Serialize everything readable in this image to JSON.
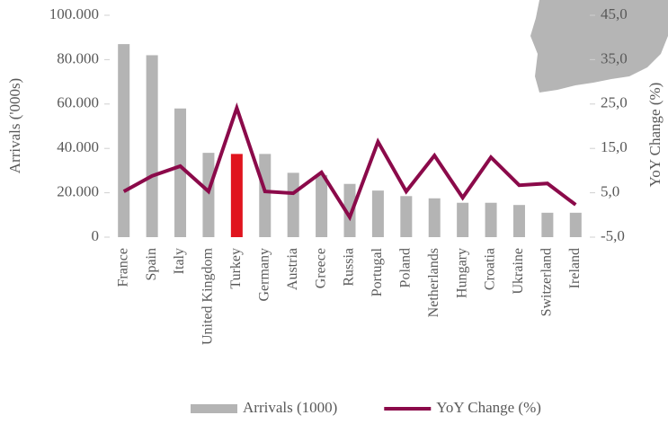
{
  "chart_data": {
    "type": "bar_line",
    "y_label": "Arrivals ('000s)",
    "y2_label": "YoY Change (%)",
    "categories": [
      "France",
      "Spain",
      "Italy",
      "United Kingdom",
      "Turkey",
      "Germany",
      "Austria",
      "Greece",
      "Russia",
      "Portugal",
      "Poland",
      "Netherlands",
      "Hungary",
      "Croatia",
      "Ukraine",
      "Switzerland",
      "Ireland"
    ],
    "series": [
      {
        "name": "Arrivals (1000)",
        "type": "bar",
        "color": "#b4b4b4",
        "colors": [
          "#b4b4b4",
          "#b4b4b4",
          "#b4b4b4",
          "#b4b4b4",
          "#e0141e",
          "#b4b4b4",
          "#b4b4b4",
          "#b4b4b4",
          "#b4b4b4",
          "#b4b4b4",
          "#b4b4b4",
          "#b4b4b4",
          "#b4b4b4",
          "#b4b4b4",
          "#b4b4b4",
          "#b4b4b4",
          "#b4b4b4"
        ],
        "values": [
          87000,
          82000,
          58000,
          38000,
          37500,
          37500,
          29000,
          28000,
          24000,
          21000,
          18500,
          17500,
          15500,
          15500,
          14500,
          11000,
          11000
        ]
      },
      {
        "name": "YoY Change (%)",
        "type": "line",
        "axis": "y2",
        "color": "#8b0a4a",
        "values": [
          5.3,
          8.8,
          11,
          5.3,
          24.1,
          5.3,
          4.9,
          9.6,
          -0.5,
          16.5,
          5.3,
          13.4,
          3.9,
          13,
          6.7,
          7.1,
          2.3
        ]
      }
    ],
    "ylim": [
      0,
      100000
    ],
    "yticks": [
      0,
      {
        "value": 20000,
        "label": "20.000"
      },
      {
        "value": 40000,
        "label": "40.000"
      },
      {
        "value": 60000,
        "label": "60.000"
      },
      {
        "value": 80000,
        "label": "80.000"
      },
      {
        "value": 100000,
        "label": "100.000"
      }
    ],
    "y2lim": [
      -5,
      45
    ],
    "y2ticks": [
      {
        "value": -5,
        "label": "-5,0"
      },
      {
        "value": 5,
        "label": "5,0"
      },
      {
        "value": 15,
        "label": "15,0"
      },
      {
        "value": 25,
        "label": "25,0"
      },
      {
        "value": 35,
        "label": "35,0"
      },
      {
        "value": 45,
        "label": "45,0"
      }
    ],
    "legend": "bottom"
  }
}
